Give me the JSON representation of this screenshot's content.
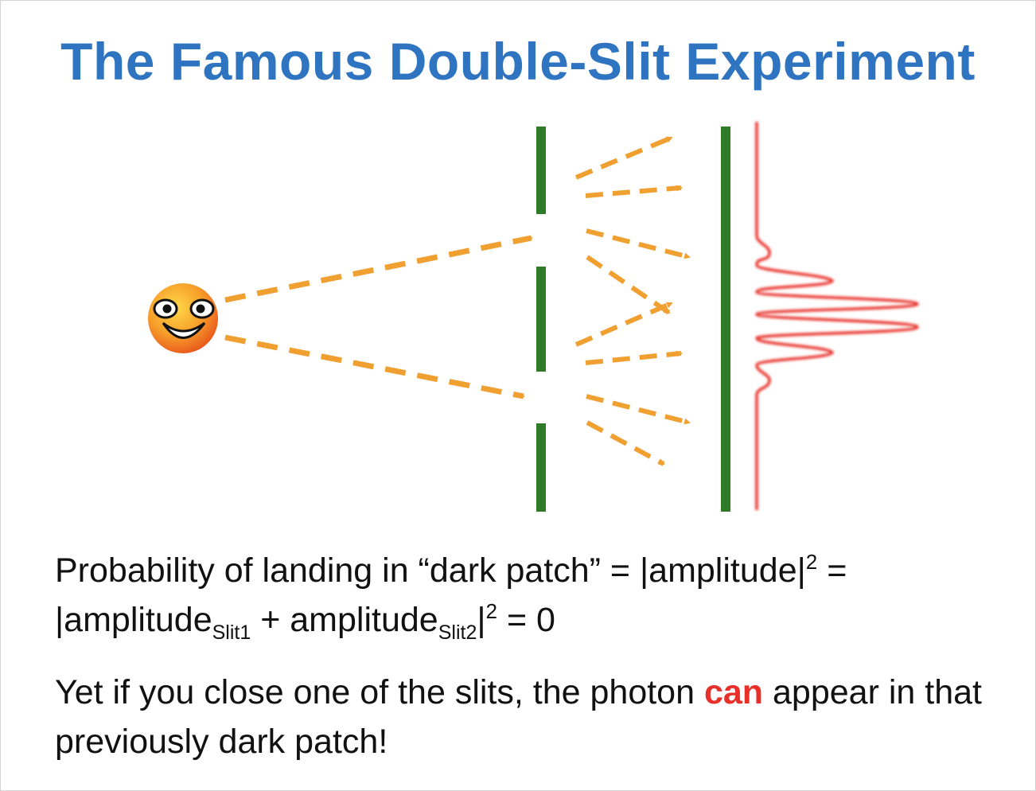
{
  "title": "The Famous Double-Slit Experiment",
  "colors": {
    "title": "#2e74c0",
    "barrier": "#2f7a26",
    "arrow": "#f0a030",
    "pattern": "#e8302a",
    "emphasis": "#e8302a",
    "text": "#111111"
  },
  "icons": {
    "source": "smiley-face-icon"
  },
  "text": {
    "line1_a": "Probability of landing in “dark patch” = |amplitude|",
    "line1_sup": "2",
    "line1_b": " =",
    "line2_a": "|amplitude",
    "line2_sub1": "Slit1",
    "line2_b": " + amplitude",
    "line2_sub2": "Slit2",
    "line2_c": "|",
    "line2_sup": "2",
    "line2_d": " = 0",
    "para2_a": "Yet if you close one of the slits, the photon ",
    "para2_em": "can",
    "para2_b": " appear in that previously dark patch!"
  }
}
